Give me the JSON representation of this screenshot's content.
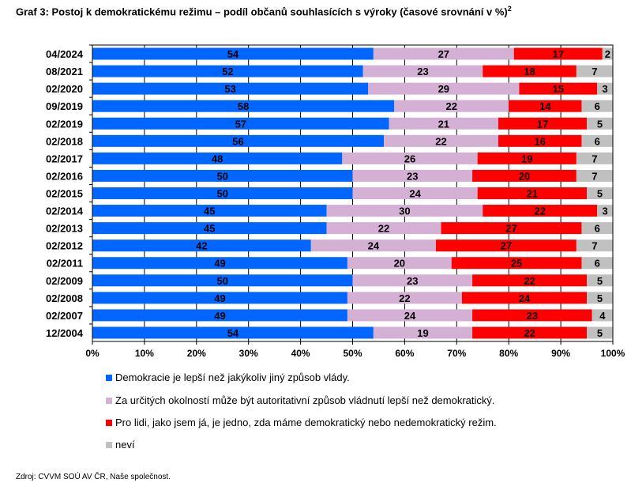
{
  "chart_data": {
    "type": "bar",
    "orientation": "horizontal-stacked-100",
    "title": "Graf 3: Postoj k demokratickému režimu – podíl občanů souhlasících s výroky (časové srovnání v %)",
    "title_sup": "2",
    "categories": [
      "04/2024",
      "08/2021",
      "02/2020",
      "09/2019",
      "02/2019",
      "02/2018",
      "02/2017",
      "02/2016",
      "02/2015",
      "02/2014",
      "02/2013",
      "02/2012",
      "02/2011",
      "02/2009",
      "02/2008",
      "02/2007",
      "12/2004"
    ],
    "series": [
      {
        "name": "Demokracie je lepší než jakýkoliv jiný způsob vlády.",
        "color": "#0066FF",
        "values": [
          54,
          52,
          53,
          58,
          57,
          56,
          48,
          50,
          50,
          45,
          45,
          42,
          49,
          50,
          49,
          49,
          54
        ]
      },
      {
        "name": "Za určitých okolností může být autoritativní způsob vládnutí lepší než demokratický.",
        "color": "#D4B0D4",
        "values": [
          27,
          23,
          29,
          22,
          21,
          22,
          26,
          23,
          24,
          30,
          22,
          24,
          20,
          23,
          22,
          24,
          19
        ]
      },
      {
        "name": "Pro lidi, jako jsem já, je jedno, zda máme demokratický nebo nedemokratický režim.",
        "color": "#FF0000",
        "values": [
          17,
          18,
          15,
          14,
          17,
          16,
          19,
          20,
          21,
          22,
          27,
          27,
          25,
          22,
          24,
          23,
          22
        ]
      },
      {
        "name": "neví",
        "color": "#C0C0C0",
        "values": [
          2,
          7,
          3,
          6,
          5,
          6,
          7,
          7,
          5,
          3,
          6,
          7,
          6,
          5,
          5,
          4,
          5
        ]
      }
    ],
    "xticks": [
      "0%",
      "10%",
      "20%",
      "30%",
      "40%",
      "50%",
      "60%",
      "70%",
      "80%",
      "90%",
      "100%"
    ],
    "xlim": [
      0,
      100
    ],
    "grid": true,
    "legend_position": "bottom"
  },
  "source": "Zdroj: CVVM SOÚ AV ČR, Naše společnost."
}
